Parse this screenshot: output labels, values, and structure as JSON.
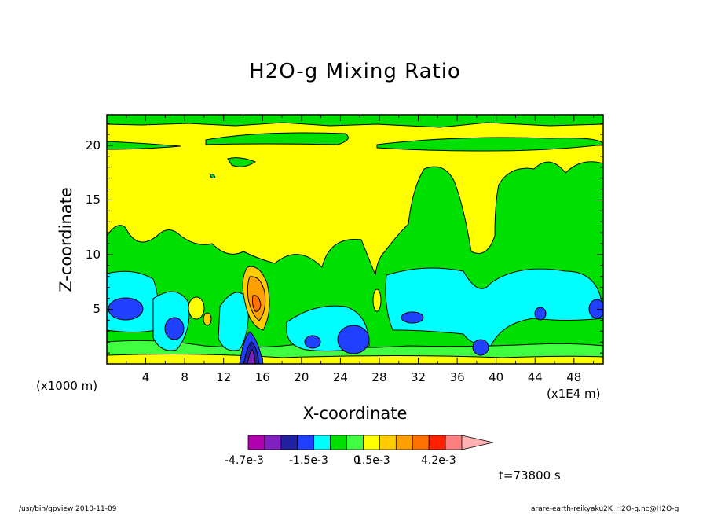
{
  "chart_data": {
    "type": "heatmap",
    "title": "H2O-g Mixing Ratio",
    "xlabel": "X-coordinate",
    "ylabel": "Z-coordinate",
    "x_unit": "(x1E4 m)",
    "y_unit": "(x1000 m)",
    "x_ticks": [
      "4",
      "8",
      "12",
      "16",
      "20",
      "24",
      "28",
      "32",
      "36",
      "40",
      "44",
      "48"
    ],
    "y_ticks": [
      "5",
      "10",
      "15",
      "20"
    ],
    "xlim": [
      0,
      51
    ],
    "ylim": [
      0,
      22.8
    ],
    "colorbar": {
      "colors": [
        "#b000b0",
        "#8020c0",
        "#2020a0",
        "#2040ff",
        "#00ffff",
        "#00e000",
        "#40ff40",
        "#ffff00",
        "#ffcc00",
        "#ffa000",
        "#ff7000",
        "#ff2000",
        "#ff8080",
        "#ffb0b0"
      ],
      "tick_labels": [
        "-4.7e-3",
        "-1.5e-3",
        "0",
        "1.5e-3",
        "4.2e-3"
      ]
    },
    "contour_regions": [
      {
        "level": "yellow",
        "color": "#ffff00",
        "description_extent": "background"
      },
      {
        "level": "green",
        "color": "#00e000"
      },
      {
        "level": "cyan",
        "color": "#00ffff"
      },
      {
        "level": "blue",
        "color": "#2040ff"
      },
      {
        "level": "orange",
        "color": "#ffa000"
      }
    ]
  },
  "annotations": {
    "time": "t=73800 s",
    "footer_left": "/usr/bin/gpview   2010-11-09",
    "footer_right": "arare-earth-reikyaku2K_H2O-g.nc@H2O-g"
  }
}
